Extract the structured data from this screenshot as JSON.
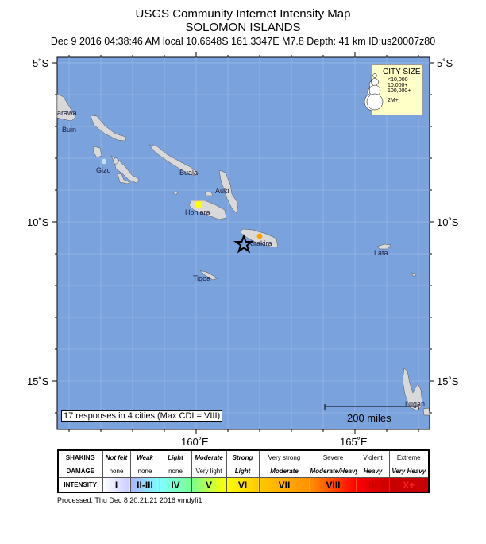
{
  "header": {
    "title": "USGS Community Internet Intensity Map",
    "region": "SOLOMON ISLANDS",
    "event_info": "Dec 9 2016 04:38:46 AM local 10.6648S 161.3347E M7.8 Depth: 41 km ID:us20007z80"
  },
  "map": {
    "ocean_color": "#7aa2dc",
    "land_color": "#d9d9d9",
    "lat_labels": [
      "5˚S",
      "10˚S",
      "15˚S"
    ],
    "lon_labels": [
      "160˚E",
      "165˚E"
    ],
    "epicenter_icon": "star-icon",
    "cities": [
      {
        "name": "arawa"
      },
      {
        "name": "Buin"
      },
      {
        "name": "Gizo",
        "color": "#bfe0ff"
      },
      {
        "name": "Buala"
      },
      {
        "name": "Auki"
      },
      {
        "name": "Honiara",
        "color": "#ffff00"
      },
      {
        "name": "Kirakira",
        "color": "#ffa500"
      },
      {
        "name": "Tigoa"
      },
      {
        "name": "Lata"
      },
      {
        "name": "Lugan"
      }
    ],
    "responses": "17 responses in 4 cities (Max CDI = VIII)",
    "scale": "200 miles",
    "city_size": {
      "title": "CITY SIZE",
      "items": [
        "<10,000",
        "10,000+",
        "100,000+",
        "2M+"
      ]
    }
  },
  "legend": {
    "shaking_label": "SHAKING",
    "damage_label": "DAMAGE",
    "intensity_label": "INTENSITY",
    "shaking": [
      "Not felt",
      "Weak",
      "Light",
      "Moderate",
      "Strong",
      "Very strong",
      "Severe",
      "Violent",
      "Extreme"
    ],
    "damage": [
      "none",
      "none",
      "none",
      "Very light",
      "Light",
      "Moderate",
      "Moderate/Heavy",
      "Heavy",
      "Very Heavy"
    ],
    "intensity": [
      "I",
      "II-III",
      "IV",
      "V",
      "VI",
      "VII",
      "VIII",
      "IX",
      "X+"
    ],
    "colors": [
      "#ffffff",
      "#acb4ff",
      "#80ffff",
      "#7aff93",
      "#ffff00",
      "#ffc800",
      "#ff9100",
      "#ff0000",
      "#c80000"
    ]
  },
  "footer": {
    "processed": "Processed: Thu Dec  8 20:21:21 2016 vmdyfi1"
  }
}
